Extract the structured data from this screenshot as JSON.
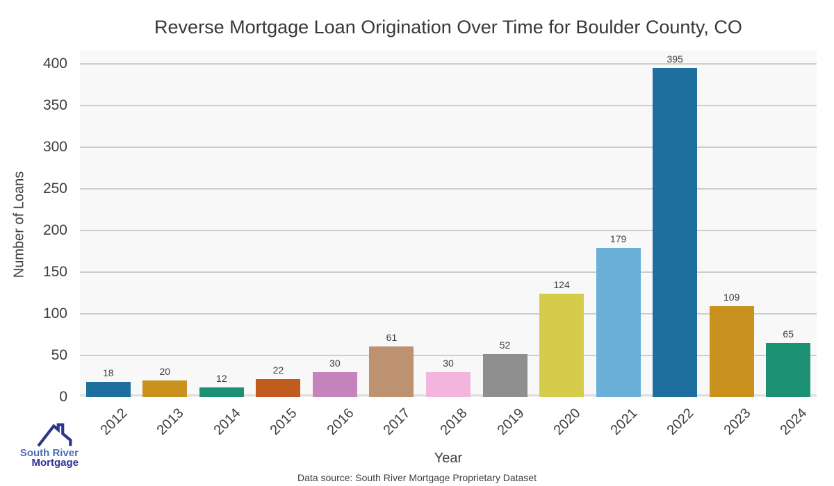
{
  "chart_data": {
    "type": "bar",
    "title": "Reverse Mortgage Loan Origination Over Time for Boulder County, CO",
    "categories": [
      "2012",
      "2013",
      "2014",
      "2015",
      "2016",
      "2017",
      "2018",
      "2019",
      "2020",
      "2021",
      "2022",
      "2023",
      "2024"
    ],
    "values": [
      18,
      20,
      12,
      22,
      30,
      61,
      30,
      52,
      124,
      179,
      395,
      109,
      65
    ],
    "xlabel": "Year",
    "ylabel": "Number of Loans",
    "ylim": [
      0,
      416
    ],
    "yticks": [
      0,
      50,
      100,
      150,
      200,
      250,
      300,
      350,
      400
    ],
    "grid": "horizontal",
    "legend": "none",
    "bar_colors": [
      "#1f6f9e",
      "#c9921e",
      "#1d9173",
      "#c05c1e",
      "#c584bc",
      "#bd9271",
      "#f2b6de",
      "#8f8f8f",
      "#d5cc4b",
      "#69afd8",
      "#1f6f9e",
      "#c9921e",
      "#1d9173"
    ]
  },
  "footer": {
    "source_text": "Data source: South River Mortgage Proprietary Dataset"
  },
  "logo": {
    "line1": "South River",
    "line2": "Mortgage",
    "line1_color": "#4a6cb5",
    "line2_color": "#2e3192",
    "roof_icon_color": "#2c3590"
  },
  "colors": {
    "plot_bg": "#f8f8f8",
    "gridline": "#cdcdcd",
    "axis_line": "#dedede",
    "text": "#3d3d3d"
  }
}
